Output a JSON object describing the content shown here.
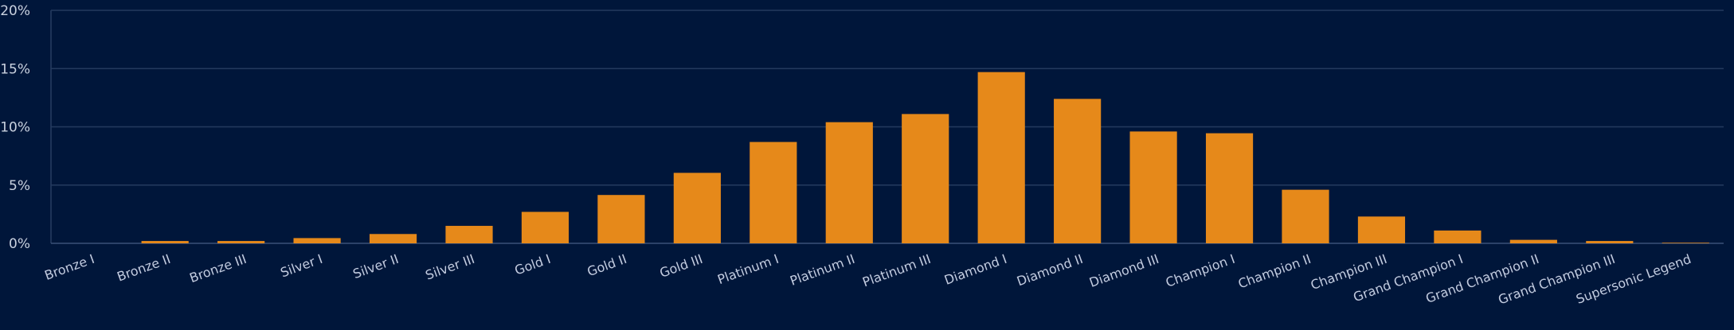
{
  "colors": {
    "background": "#00163a",
    "bar": "#e6891a",
    "grid": "#243a5e",
    "axis": "#3a5077",
    "tick_text": "#c9d1df"
  },
  "chart_data": {
    "type": "bar",
    "title": "",
    "xlabel": "",
    "ylabel": "",
    "ylim": [
      0,
      20
    ],
    "y_ticks": [
      0,
      5,
      10,
      15,
      20
    ],
    "y_tick_labels": [
      "0%",
      "5%",
      "10%",
      "15%",
      "20%"
    ],
    "grid": true,
    "categories": [
      "Bronze I",
      "Bronze II",
      "Bronze III",
      "Silver I",
      "Silver II",
      "Silver III",
      "Gold I",
      "Gold II",
      "Gold III",
      "Platinum I",
      "Platinum II",
      "Platinum III",
      "Diamond I",
      "Diamond II",
      "Diamond III",
      "Champion I",
      "Champion II",
      "Champion III",
      "Grand Champion I",
      "Grand Champion II",
      "Grand Champion III",
      "Supersonic Legend"
    ],
    "values": [
      0.0,
      0.2,
      0.2,
      0.45,
      0.8,
      1.5,
      2.7,
      4.15,
      6.05,
      8.7,
      10.4,
      11.1,
      14.7,
      12.4,
      9.6,
      9.45,
      4.6,
      2.3,
      1.1,
      0.3,
      0.2,
      0.05
    ]
  }
}
